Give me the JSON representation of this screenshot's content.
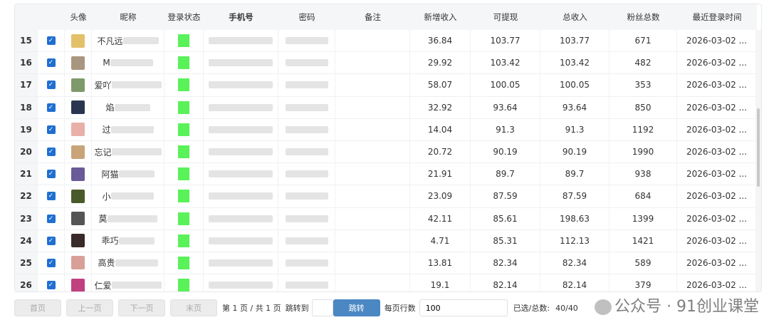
{
  "table": {
    "columns": [
      "",
      "",
      "头像",
      "昵称",
      "登录状态",
      "手机号",
      "密码",
      "备注",
      "新增收入",
      "可提现",
      "总收入",
      "粉丝总数",
      "最近登录时间"
    ],
    "rows": [
      {
        "n": "15",
        "nick": "不凡远",
        "new": "36.84",
        "cash": "103.77",
        "total": "103.77",
        "fans": "671",
        "time": "2026-03-02 ...",
        "avatar": "#e3c06a"
      },
      {
        "n": "16",
        "nick": "M",
        "new": "29.92",
        "cash": "103.42",
        "total": "103.42",
        "fans": "482",
        "time": "2026-03-02 ...",
        "avatar": "#a99680"
      },
      {
        "n": "17",
        "nick": "爱吖",
        "new": "58.07",
        "cash": "100.05",
        "total": "100.05",
        "fans": "353",
        "time": "2026-03-02 ...",
        "avatar": "#7f9a6a"
      },
      {
        "n": "18",
        "nick": "焰",
        "new": "32.92",
        "cash": "93.64",
        "total": "93.64",
        "fans": "850",
        "time": "2026-03-02 ...",
        "avatar": "#2a3550"
      },
      {
        "n": "19",
        "nick": "过",
        "new": "14.04",
        "cash": "91.3",
        "total": "91.3",
        "fans": "1192",
        "time": "2026-03-02 ...",
        "avatar": "#e8b0a8"
      },
      {
        "n": "20",
        "nick": "忘记",
        "new": "20.72",
        "cash": "90.19",
        "total": "90.19",
        "fans": "1990",
        "time": "2026-03-02 ...",
        "avatar": "#c8a478"
      },
      {
        "n": "21",
        "nick": "阿猫",
        "new": "21.91",
        "cash": "89.7",
        "total": "89.7",
        "fans": "938",
        "time": "2026-03-02 ...",
        "avatar": "#6a5a98"
      },
      {
        "n": "22",
        "nick": "小",
        "new": "23.09",
        "cash": "87.59",
        "total": "87.59",
        "fans": "684",
        "time": "2026-03-02 ...",
        "avatar": "#4a5a2a"
      },
      {
        "n": "23",
        "nick": "莫",
        "new": "42.11",
        "cash": "85.61",
        "total": "198.63",
        "fans": "1399",
        "time": "2026-03-02 ...",
        "avatar": "#555555"
      },
      {
        "n": "24",
        "nick": "乖巧",
        "new": "4.71",
        "cash": "85.31",
        "total": "112.13",
        "fans": "1421",
        "time": "2026-03-02 ...",
        "avatar": "#3a2a2a"
      },
      {
        "n": "25",
        "nick": "高贵",
        "new": "13.81",
        "cash": "82.34",
        "total": "82.34",
        "fans": "589",
        "time": "2026-03-02 ...",
        "avatar": "#d8a098"
      },
      {
        "n": "26",
        "nick": "仁爱",
        "new": "19.1",
        "cash": "82.14",
        "total": "82.14",
        "fans": "379",
        "time": "2026-03-02 ...",
        "avatar": "#c04080"
      }
    ]
  },
  "pager": {
    "first": "首页",
    "prev": "上一页",
    "next": "下一页",
    "last": "末页",
    "info": "第 1 页 / 共 1 页",
    "jump_to": "跳转到",
    "jump": "跳转",
    "per_page": "每页行数",
    "per_page_value": "100",
    "selected_label": "已选/总数:",
    "selected_value": "40/40"
  },
  "watermark": "公众号 · 91创业课堂",
  "colors": {
    "accent": "#1f6fd0",
    "jump_button": "#4a87c3",
    "status_online": "#3cf03c"
  }
}
